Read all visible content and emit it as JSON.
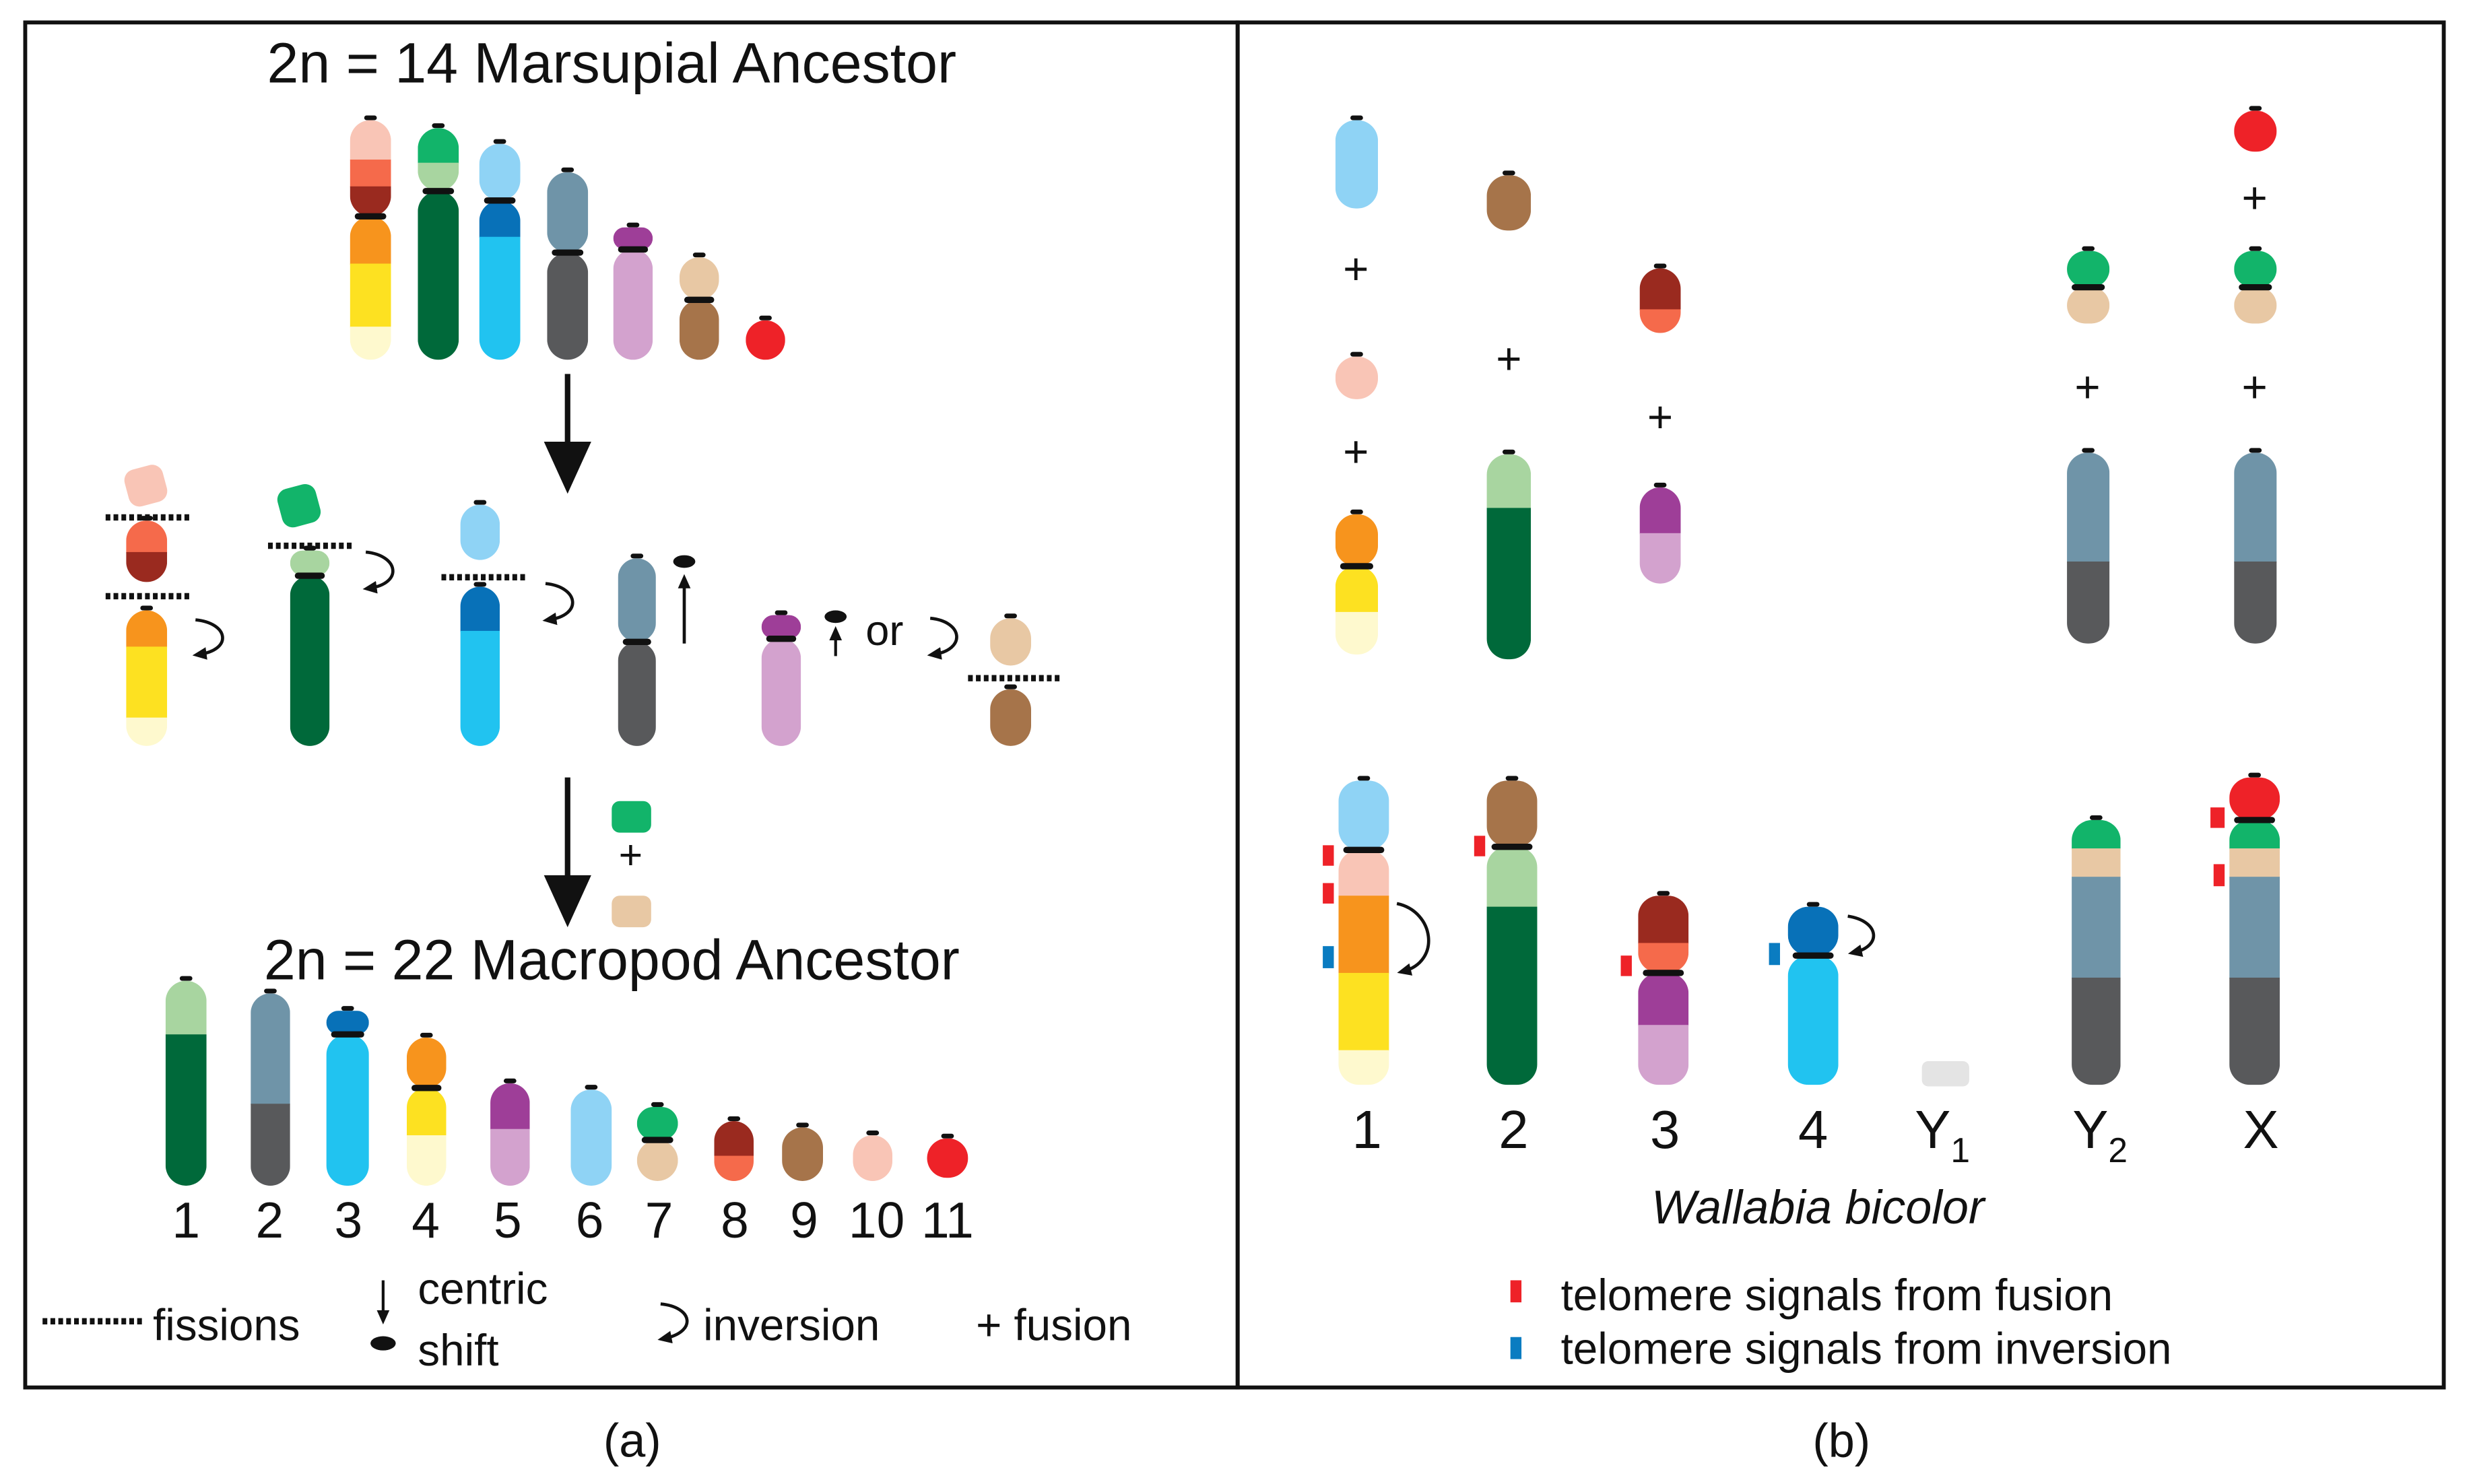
{
  "colors": {
    "pink": "#F9C5B6",
    "salmon": "#F56A4B",
    "darkred": "#9A2A1F",
    "orange": "#F7941D",
    "yellow": "#FDE121",
    "cream": "#FEF9CE",
    "lightgreen": "#A8D5A0",
    "darkgreen": "#00693A",
    "green": "#12B46A",
    "lightblue": "#8FD3F5",
    "cyan": "#21C3F0",
    "blue": "#0871B8",
    "bluegray": "#6F94A8",
    "gray": "#58595B",
    "purple": "#9E3E98",
    "lilac": "#D3A2CE",
    "tan": "#E8C8A4",
    "brown": "#A6744A",
    "red": "#EE2228",
    "ltgray": "#E4E4E4",
    "telo_fusion": "#EE2228",
    "telo_inversion": "#0A7CC1"
  },
  "panel_a": {
    "title_top": "2n = 14 Marsupial Ancestor",
    "fusion_plus": "+",
    "title_bottom": "2n = 22 Macropod Ancestor",
    "or_label": "or",
    "numbers": [
      "1",
      "2",
      "3",
      "4",
      "5",
      "6",
      "7",
      "8",
      "9",
      "10",
      "11"
    ],
    "legend": {
      "fissions": "fissions",
      "centric_1": "centric",
      "centric_2": "shift",
      "inversion": "inversion",
      "fusion": "+ fusion"
    }
  },
  "panel_b": {
    "plus": "+",
    "labels": [
      {
        "base": "1",
        "sub": ""
      },
      {
        "base": "2",
        "sub": ""
      },
      {
        "base": "3",
        "sub": ""
      },
      {
        "base": "4",
        "sub": ""
      },
      {
        "base": "Y",
        "sub": "1"
      },
      {
        "base": "Y",
        "sub": "2"
      },
      {
        "base": "X",
        "sub": ""
      }
    ],
    "species": "Wallabia bicolor",
    "legend_fusion": "telomere signals from fusion",
    "legend_inversion": "telomere signals from inversion"
  },
  "captions": {
    "a": "(a)",
    "b": "(b)"
  }
}
